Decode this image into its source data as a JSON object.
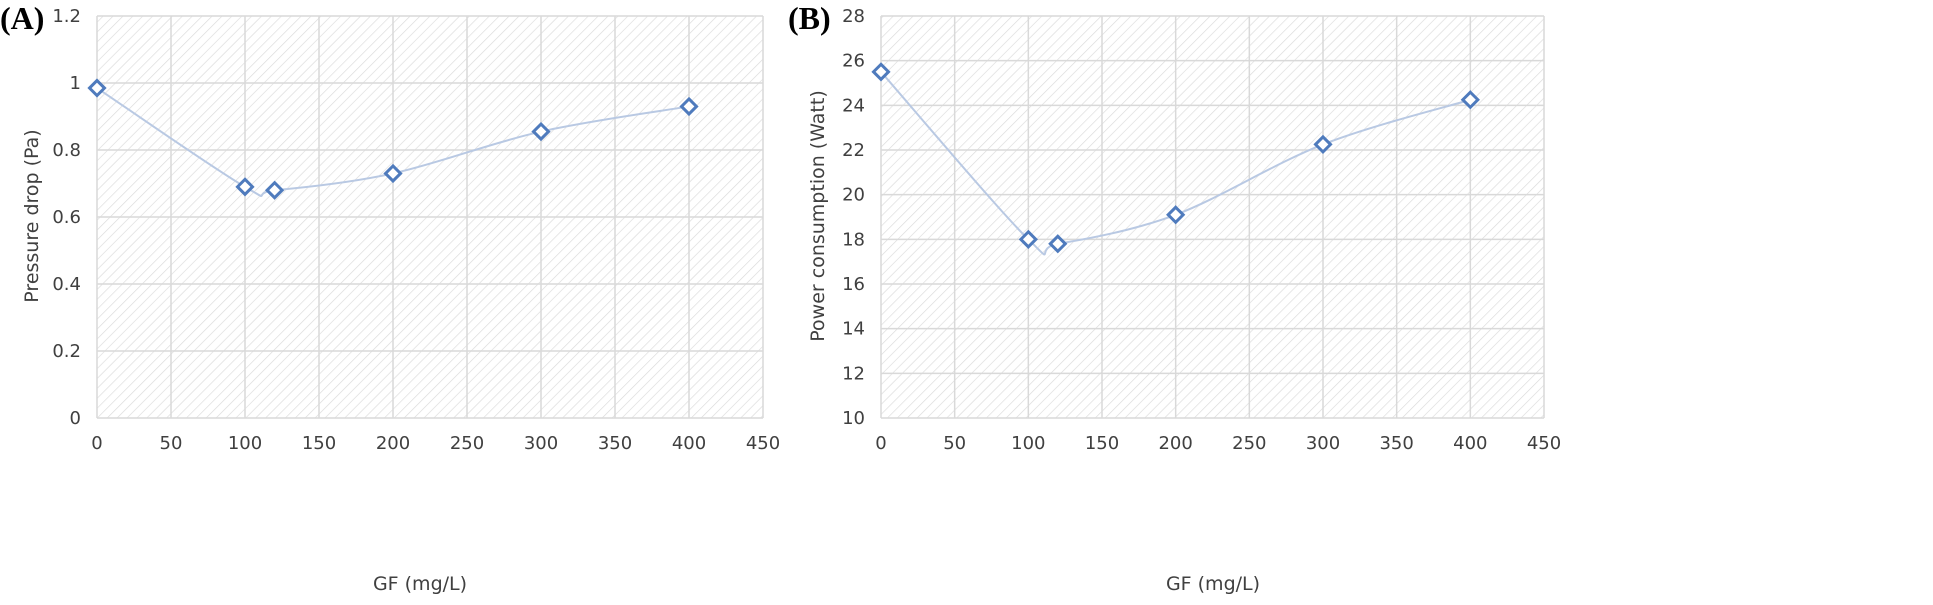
{
  "chart_data": [
    {
      "panel_label": "(A)",
      "type": "line",
      "title": "",
      "xlabel": "GF (mg/L)",
      "ylabel": "Pressure drop (Pa)",
      "x": [
        0,
        100,
        120,
        200,
        300,
        400
      ],
      "y": [
        0.985,
        0.69,
        0.68,
        0.73,
        0.855,
        0.93
      ],
      "xlim": [
        0,
        450
      ],
      "ylim": [
        0,
        1.2
      ],
      "xticks": [
        "0",
        "50",
        "100",
        "150",
        "200",
        "250",
        "300",
        "350",
        "400",
        "450"
      ],
      "yticks": [
        "0",
        "0.2",
        "0.4",
        "0.6",
        "0.8",
        "1",
        "1.2"
      ],
      "grid": true,
      "marker": "diamond",
      "colors": {
        "line": "#b9c9e3",
        "marker": "#4f7bbd",
        "grid": "#d9d9d9",
        "hatch": "#dadada"
      }
    },
    {
      "panel_label": "(B)",
      "type": "line",
      "title": "",
      "xlabel": "GF (mg/L)",
      "ylabel": "Power consumption (Watt)",
      "x": [
        0,
        100,
        120,
        200,
        300,
        400
      ],
      "y": [
        25.5,
        18.0,
        17.8,
        19.1,
        22.25,
        24.25
      ],
      "xlim": [
        0,
        450
      ],
      "ylim": [
        10,
        28
      ],
      "xticks": [
        "0",
        "50",
        "100",
        "150",
        "200",
        "250",
        "300",
        "350",
        "400",
        "450"
      ],
      "yticks": [
        "10",
        "12",
        "14",
        "16",
        "18",
        "20",
        "22",
        "24",
        "26",
        "28"
      ],
      "grid": true,
      "marker": "diamond",
      "colors": {
        "line": "#b9c9e3",
        "marker": "#4f7bbd",
        "grid": "#d9d9d9",
        "hatch": "#dadada"
      }
    }
  ]
}
